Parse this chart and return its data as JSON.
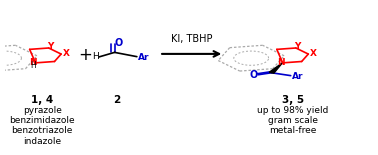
{
  "bg_color": "#ffffff",
  "red_color": "#ff0000",
  "blue_color": "#0000cc",
  "black_color": "#000000",
  "dashed_gray": "#aaaaaa",
  "label_14": "1, 4",
  "label_azoles": [
    "pyrazole",
    "benzimidazole",
    "benzotriazole",
    "indazole"
  ],
  "label_2": "2",
  "label_35": "3, 5",
  "label_conditions": "KI, TBHP",
  "label_results": [
    "up to 98% yield",
    "gram scale",
    "metal-free"
  ],
  "figsize": [
    3.78,
    1.55
  ],
  "dpi": 100
}
